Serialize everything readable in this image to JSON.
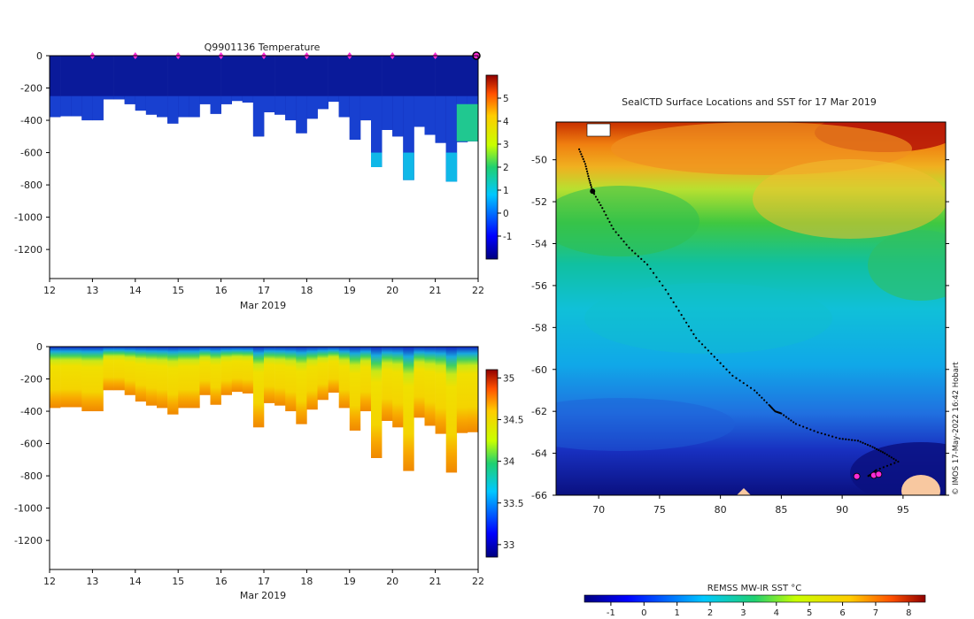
{
  "chart_data": [
    {
      "type": "heatmap",
      "title": "Q9901136  Temperature",
      "xlabel": "Mar 2019",
      "x_ticks": [
        "12",
        "13",
        "14",
        "15",
        "16",
        "17",
        "18",
        "19",
        "20",
        "21",
        "22"
      ],
      "xlim": [
        12,
        22
      ],
      "y_ticks": [
        "0",
        "-200",
        "-400",
        "-600",
        "-800",
        "-1000",
        "-1200"
      ],
      "ylim": [
        -1380,
        0
      ],
      "profile_times": [
        12.0,
        12.25,
        12.5,
        12.75,
        13.0,
        13.25,
        13.5,
        13.75,
        14.0,
        14.25,
        14.5,
        14.75,
        15.0,
        15.25,
        15.5,
        15.75,
        16.0,
        16.25,
        16.5,
        16.75,
        17.0,
        17.25,
        17.5,
        17.75,
        18.0,
        18.25,
        18.5,
        18.75,
        19.0,
        19.25,
        19.5,
        19.75,
        20.0,
        20.25,
        20.5,
        20.75,
        21.0,
        21.25,
        21.5,
        21.75
      ],
      "profile_max_depth": [
        -380,
        -375,
        -375,
        -400,
        -400,
        -270,
        -270,
        -300,
        -340,
        -365,
        -380,
        -420,
        -380,
        -380,
        -300,
        -360,
        -300,
        -280,
        -290,
        -500,
        -350,
        -365,
        -400,
        -480,
        -390,
        -330,
        -285,
        -380,
        -520,
        -400,
        -690,
        -460,
        -500,
        -770,
        -440,
        -490,
        -540,
        -780,
        -535,
        -530
      ],
      "surface_markers": [
        13,
        14,
        15,
        16,
        17,
        18,
        19,
        20,
        21
      ],
      "colorbar": {
        "ticks": [
          "-1",
          "0",
          "1",
          "2",
          "3",
          "4",
          "5"
        ],
        "min": -2,
        "max": 6
      }
    },
    {
      "type": "heatmap",
      "title": "",
      "xlabel": "Mar 2019",
      "x_ticks": [
        "12",
        "13",
        "14",
        "15",
        "16",
        "17",
        "18",
        "19",
        "20",
        "21",
        "22"
      ],
      "xlim": [
        12,
        22
      ],
      "y_ticks": [
        "0",
        "-200",
        "-400",
        "-600",
        "-800",
        "-1000",
        "-1200"
      ],
      "ylim": [
        -1380,
        0
      ],
      "colorbar": {
        "ticks": [
          "33",
          "33.5",
          "34",
          "34.5",
          "35"
        ],
        "min": 32.85,
        "max": 35.1
      }
    },
    {
      "type": "heatmap",
      "title": "SealCTD Surface Locations and SST for 17 Mar 2019",
      "x_ticks": [
        "70",
        "75",
        "80",
        "85",
        "90",
        "95"
      ],
      "xlim": [
        66.5,
        98.5
      ],
      "y_ticks": [
        "-50",
        "-52",
        "-54",
        "-56",
        "-58",
        "-60",
        "-62",
        "-64",
        "-66"
      ],
      "ylim": [
        -66,
        -48.2
      ],
      "track_lon": [
        68.4,
        68.9,
        69.2,
        69.5,
        70.3,
        71.2,
        72.5,
        74.0,
        75.5,
        76.8,
        78.0,
        79.5,
        81.0,
        82.8,
        84.0,
        84.5,
        85.0,
        86.2,
        88.0,
        89.8,
        91.3,
        92.5,
        93.5,
        94.6,
        92.8,
        92.4,
        92.1
      ],
      "track_lat": [
        -49.5,
        -50.2,
        -50.9,
        -51.5,
        -52.3,
        -53.3,
        -54.2,
        -55.0,
        -56.2,
        -57.4,
        -58.5,
        -59.4,
        -60.3,
        -61.0,
        -61.7,
        -62.0,
        -62.1,
        -62.6,
        -63.0,
        -63.3,
        -63.4,
        -63.7,
        -64.0,
        -64.4,
        -64.8,
        -65.0,
        -65.1
      ],
      "current_positions": [
        {
          "lon": 91.2,
          "lat": -65.1
        },
        {
          "lon": 92.6,
          "lat": -65.05
        },
        {
          "lon": 93.0,
          "lat": -65.0
        }
      ],
      "side_note": "© IMOS 17-May-2022 16:42 Hobart",
      "colorbar": {
        "label": "REMSS MW-IR SST °C",
        "ticks": [
          "-1",
          "0",
          "1",
          "2",
          "3",
          "4",
          "5",
          "6",
          "7",
          "8"
        ],
        "min": -1.8,
        "max": 8.5
      }
    }
  ]
}
